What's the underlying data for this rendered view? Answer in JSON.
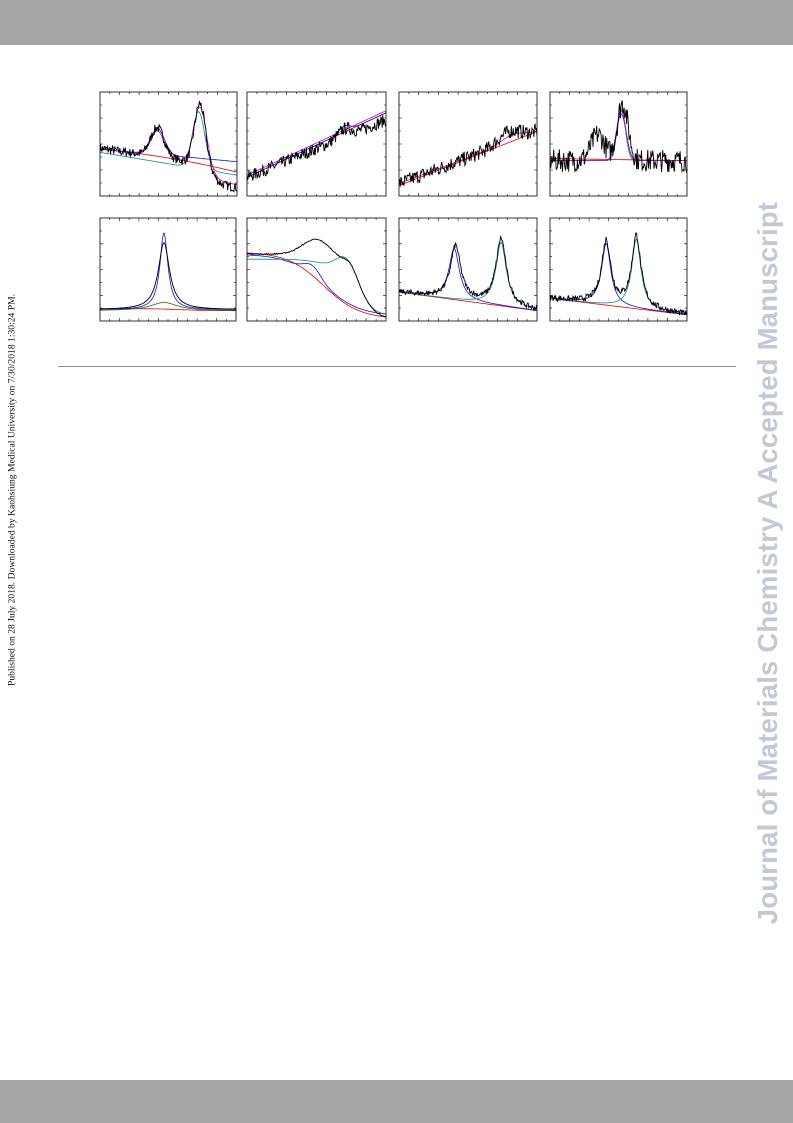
{
  "page": {
    "side_note": "Published on 28 July 2018. Downloaded by Kaohsiung Medical University on 7/30/2018 1:30:24 PM.",
    "watermark": "Journal of Materials Chemistry A Accepted Manuscript"
  },
  "figure": {
    "panels": [
      {
        "id": "r1c1",
        "curves": [
          "data",
          "fit",
          "background",
          "peak-1",
          "peak-2"
        ]
      },
      {
        "id": "r1c2",
        "curves": [
          "data",
          "fit",
          "background",
          "peak-1"
        ]
      },
      {
        "id": "r1c3",
        "curves": [
          "data",
          "fit",
          "background"
        ]
      },
      {
        "id": "r1c4",
        "curves": [
          "data",
          "fit",
          "background",
          "peak-1",
          "peak-2"
        ]
      },
      {
        "id": "r2c1",
        "curves": [
          "data",
          "background",
          "peak-1"
        ]
      },
      {
        "id": "r2c2",
        "curves": [
          "data",
          "background",
          "peak-1",
          "peak-2"
        ]
      },
      {
        "id": "r2c3",
        "curves": [
          "data",
          "background",
          "peak-1",
          "peak-2"
        ]
      },
      {
        "id": "r2c4",
        "curves": [
          "data",
          "background",
          "peak-1",
          "peak-2"
        ]
      }
    ],
    "colors": {
      "data": "#000000",
      "fit": "#c000c0",
      "background": "#e00000",
      "peak-1": "#1010e0",
      "peak-2": "#128a8a",
      "envelope": "#1f6b1f",
      "frame": "#000000"
    }
  }
}
